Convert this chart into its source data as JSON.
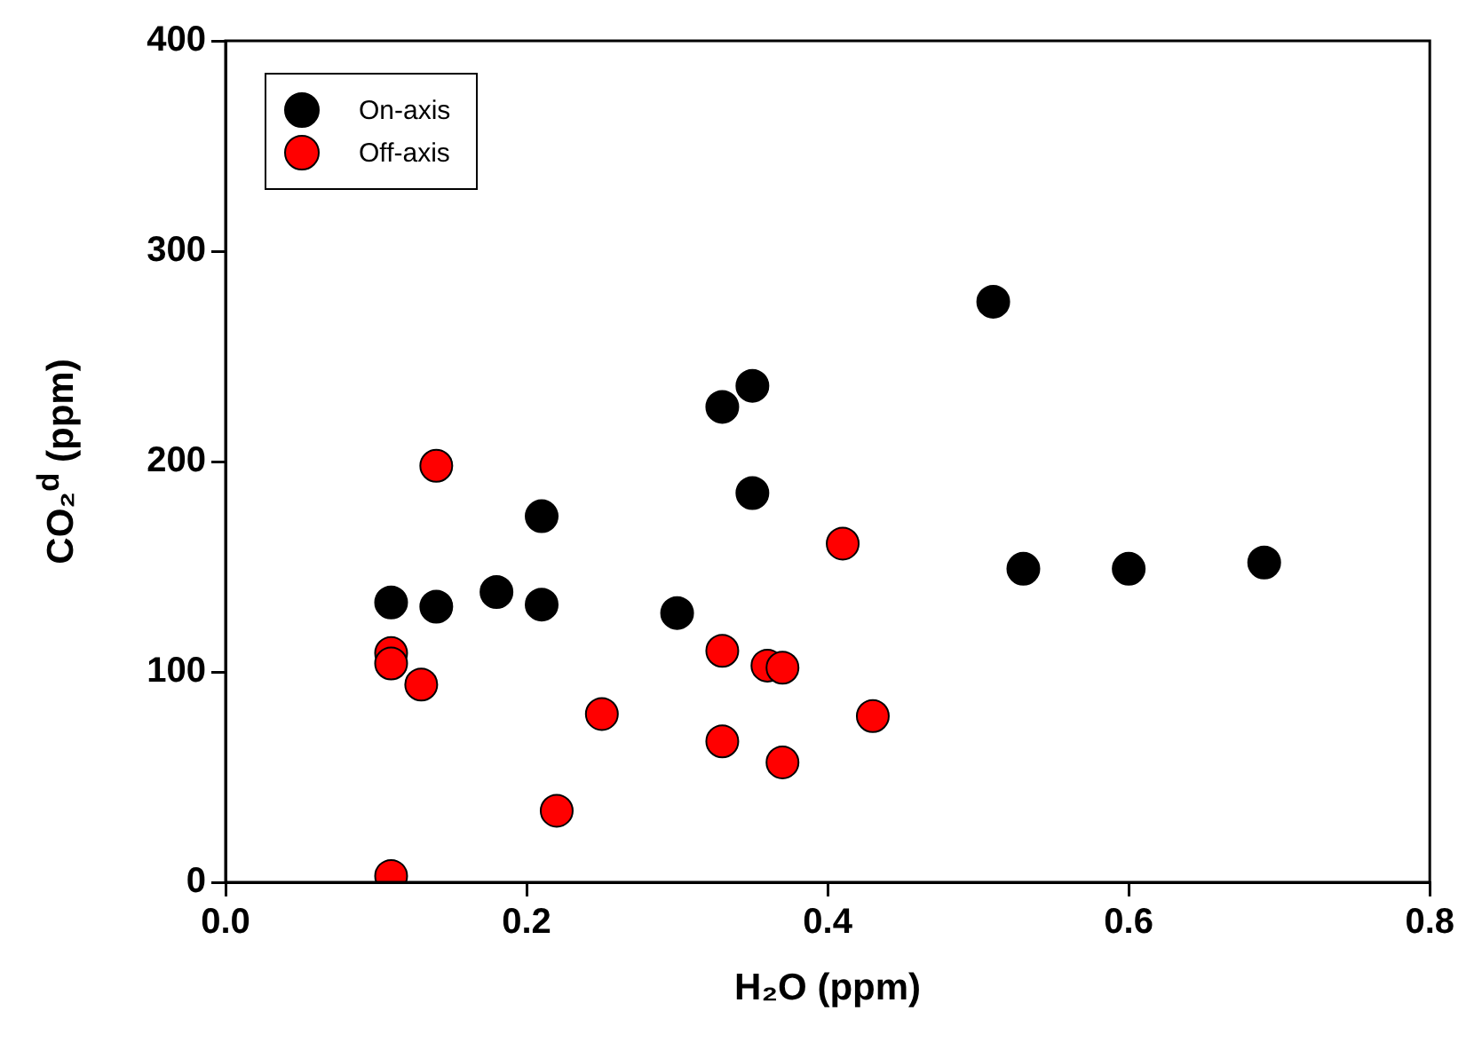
{
  "chart_data": {
    "type": "scatter",
    "xlabel": "H₂O (ppm)",
    "ylabel": "CO₂$^{d}$ (ppm)",
    "xlim": [
      0,
      0.8
    ],
    "xticks": [
      {
        "value": 0,
        "label": "0.0"
      },
      0.2,
      0.4,
      0.6,
      0.8
    ],
    "ylim": [
      0,
      400
    ],
    "yticks": [
      0,
      100,
      200,
      300,
      400
    ],
    "grid": false,
    "legend": "top left",
    "marker": "circle",
    "series": [
      {
        "name": "On-axis",
        "color": "#000000",
        "x": [
          0.11,
          0.14,
          0.18,
          0.21,
          0.21,
          0.3,
          0.33,
          0.35,
          0.35,
          0.51,
          0.53,
          0.6,
          0.69
        ],
        "values": [
          133,
          131,
          138,
          174,
          132,
          128,
          226,
          236,
          185,
          276,
          149,
          149,
          152
        ]
      },
      {
        "name": "Off-axis",
        "color": "#ff0000",
        "x": [
          0.14,
          0.11,
          0.11,
          0.13,
          0.25,
          0.22,
          0.11,
          0.33,
          0.36,
          0.37,
          0.33,
          0.37,
          0.41,
          0.43
        ],
        "values": [
          198,
          109,
          104,
          94,
          80,
          34,
          3,
          110,
          103,
          102,
          67,
          57,
          161,
          79
        ]
      }
    ]
  }
}
